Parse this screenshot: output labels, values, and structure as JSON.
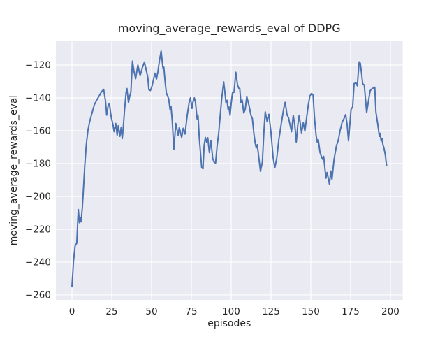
{
  "chart_data": {
    "type": "line",
    "title": "moving_average_rewards_eval of DDPG",
    "xlabel": "episodes",
    "ylabel": "moving_average_rewards_eval",
    "x_ticks": [
      0,
      25,
      50,
      75,
      100,
      125,
      150,
      175,
      200
    ],
    "x_tick_labels": [
      "0",
      "25",
      "50",
      "75",
      "100",
      "125",
      "150",
      "175",
      "200"
    ],
    "y_ticks": [
      -120,
      -140,
      -160,
      -180,
      -200,
      -220,
      -240,
      -260
    ],
    "y_tick_labels": [
      "−120",
      "−140",
      "−160",
      "−180",
      "−200",
      "−220",
      "−240",
      "−260"
    ],
    "xlim": [
      -10.1,
      207.7
    ],
    "ylim": [
      -263.0,
      -105.1
    ],
    "grid": true,
    "legend": false,
    "colors": {
      "figure_background": "#ffffff",
      "axes_background": "#eaeaf2",
      "grid": "#ffffff",
      "line": "#4c72b0",
      "text": "#262626"
    },
    "series": [
      {
        "name": "moving_average_rewards_eval",
        "color": "#4c72b0",
        "points": [
          [
            0,
            -255
          ],
          [
            1,
            -239
          ],
          [
            2,
            -230
          ],
          [
            3,
            -228.5
          ],
          [
            4,
            -208
          ],
          [
            4.7,
            -216
          ],
          [
            5.2,
            -213
          ],
          [
            5.7,
            -215.5
          ],
          [
            6.5,
            -207
          ],
          [
            7,
            -199
          ],
          [
            8,
            -182
          ],
          [
            9,
            -168.5
          ],
          [
            10,
            -160
          ],
          [
            11,
            -155
          ],
          [
            11.4,
            -153.5
          ],
          [
            12.6,
            -149.2
          ],
          [
            14,
            -144.3
          ],
          [
            15.5,
            -141.4
          ],
          [
            17,
            -139
          ],
          [
            18.4,
            -136.5
          ],
          [
            19.9,
            -134.8
          ],
          [
            21.1,
            -142.1
          ],
          [
            21.8,
            -150.5
          ],
          [
            22.8,
            -144.3
          ],
          [
            23.5,
            -143.5
          ],
          [
            24.7,
            -152
          ],
          [
            25.7,
            -156
          ],
          [
            26.5,
            -160.6
          ],
          [
            27.5,
            -155.6
          ],
          [
            28.4,
            -162.7
          ],
          [
            29.1,
            -157
          ],
          [
            30.1,
            -163.4
          ],
          [
            30.9,
            -158
          ],
          [
            31.6,
            -164.8
          ],
          [
            32.3,
            -157
          ],
          [
            33,
            -147.8
          ],
          [
            34,
            -136.5
          ],
          [
            34.5,
            -134.3
          ],
          [
            35.5,
            -142.8
          ],
          [
            36.3,
            -139
          ],
          [
            37,
            -136.5
          ],
          [
            38,
            -117.6
          ],
          [
            39,
            -124
          ],
          [
            40,
            -128.3
          ],
          [
            41.4,
            -120
          ],
          [
            42.8,
            -126.5
          ],
          [
            44.3,
            -121.4
          ],
          [
            45.5,
            -118.2
          ],
          [
            46.5,
            -122.5
          ],
          [
            47.7,
            -127.8
          ],
          [
            48.3,
            -135
          ],
          [
            49.3,
            -135.5
          ],
          [
            50.3,
            -132.8
          ],
          [
            51.2,
            -129
          ],
          [
            52.1,
            -125
          ],
          [
            53.1,
            -128.5
          ],
          [
            54,
            -124
          ],
          [
            55,
            -117
          ],
          [
            56,
            -111.5
          ],
          [
            57.2,
            -122.3
          ],
          [
            57.7,
            -121.3
          ],
          [
            58.6,
            -131
          ],
          [
            59.3,
            -137
          ],
          [
            60.8,
            -140.7
          ],
          [
            61.6,
            -147.1
          ],
          [
            62.2,
            -145
          ],
          [
            63,
            -154.2
          ],
          [
            64,
            -171.2
          ],
          [
            65.2,
            -155.6
          ],
          [
            66.7,
            -162.7
          ],
          [
            67.4,
            -158
          ],
          [
            68.9,
            -164.1
          ],
          [
            69.9,
            -158.5
          ],
          [
            71,
            -162
          ],
          [
            72.5,
            -149.9
          ],
          [
            73.7,
            -142.2
          ],
          [
            74.4,
            -140
          ],
          [
            75.4,
            -146.4
          ],
          [
            76.1,
            -142
          ],
          [
            76.9,
            -140
          ],
          [
            77.6,
            -142.8
          ],
          [
            78.6,
            -152.8
          ],
          [
            79.2,
            -151
          ],
          [
            80,
            -164.8
          ],
          [
            81.5,
            -182.5
          ],
          [
            82.3,
            -183.2
          ],
          [
            83,
            -169.1
          ],
          [
            83.8,
            -164.1
          ],
          [
            84.5,
            -166.9
          ],
          [
            85.3,
            -164.3
          ],
          [
            86.3,
            -173.3
          ],
          [
            87.3,
            -166.2
          ],
          [
            88.4,
            -176.9
          ],
          [
            89.2,
            -179
          ],
          [
            90.2,
            -179.7
          ],
          [
            91.2,
            -169.1
          ],
          [
            92.1,
            -162
          ],
          [
            93,
            -152
          ],
          [
            94,
            -141
          ],
          [
            95.3,
            -130.3
          ],
          [
            96.2,
            -137.8
          ],
          [
            96.7,
            -142.7
          ],
          [
            97.4,
            -141.5
          ],
          [
            98.1,
            -147.1
          ],
          [
            98.6,
            -145.5
          ],
          [
            99.3,
            -150.6
          ],
          [
            100,
            -143.5
          ],
          [
            100.8,
            -137
          ],
          [
            101.8,
            -136.6
          ],
          [
            102.9,
            -124.4
          ],
          [
            104,
            -132.2
          ],
          [
            105,
            -134.5
          ],
          [
            105.4,
            -134.3
          ],
          [
            106.1,
            -142.8
          ],
          [
            106.9,
            -141.4
          ],
          [
            107.9,
            -149.2
          ],
          [
            108.8,
            -147.1
          ],
          [
            109.8,
            -139.3
          ],
          [
            111.2,
            -144.5
          ],
          [
            112.4,
            -150.5
          ],
          [
            113.3,
            -152.5
          ],
          [
            114.3,
            -162
          ],
          [
            115,
            -167
          ],
          [
            115.7,
            -170.5
          ],
          [
            116.4,
            -168.5
          ],
          [
            117.2,
            -175
          ],
          [
            118.4,
            -184.7
          ],
          [
            119.6,
            -179
          ],
          [
            120.6,
            -160
          ],
          [
            121.4,
            -148.5
          ],
          [
            122.5,
            -154.2
          ],
          [
            123.7,
            -150
          ],
          [
            125,
            -161
          ],
          [
            126.3,
            -176
          ],
          [
            127.4,
            -182.6
          ],
          [
            128.6,
            -177
          ],
          [
            130,
            -165
          ],
          [
            131.5,
            -155.5
          ],
          [
            133,
            -146.5
          ],
          [
            133.9,
            -142.7
          ],
          [
            135.1,
            -150.4
          ],
          [
            136,
            -152
          ],
          [
            136.8,
            -155.6
          ],
          [
            137.9,
            -160.6
          ],
          [
            139,
            -150.6
          ],
          [
            140,
            -157
          ],
          [
            140.9,
            -166.9
          ],
          [
            141.8,
            -157
          ],
          [
            142.7,
            -150.6
          ],
          [
            144.2,
            -161.3
          ],
          [
            145.3,
            -155.2
          ],
          [
            146.3,
            -160.2
          ],
          [
            147.4,
            -152
          ],
          [
            148.4,
            -144.5
          ],
          [
            149.4,
            -139
          ],
          [
            150.3,
            -137.4
          ],
          [
            151.4,
            -137.9
          ],
          [
            152.4,
            -153
          ],
          [
            153.4,
            -163.4
          ],
          [
            154.1,
            -166.9
          ],
          [
            154.7,
            -165.5
          ],
          [
            155.8,
            -173.3
          ],
          [
            157,
            -176.5
          ],
          [
            157.5,
            -177.4
          ],
          [
            158.1,
            -175.6
          ],
          [
            159.5,
            -188.9
          ],
          [
            160.2,
            -185.4
          ],
          [
            160.7,
            -187.6
          ],
          [
            161.7,
            -192.4
          ],
          [
            162.6,
            -184.5
          ],
          [
            163.3,
            -189.6
          ],
          [
            164.6,
            -177.6
          ],
          [
            166.1,
            -169.3
          ],
          [
            167.3,
            -165.8
          ],
          [
            168.3,
            -160.4
          ],
          [
            169.7,
            -154.8
          ],
          [
            171,
            -152.3
          ],
          [
            171.9,
            -150.2
          ],
          [
            172.8,
            -156
          ],
          [
            173.7,
            -166.1
          ],
          [
            175.3,
            -147
          ],
          [
            176.3,
            -145.5
          ],
          [
            177.2,
            -131.4
          ],
          [
            178.3,
            -130.8
          ],
          [
            179.2,
            -132.6
          ],
          [
            180.4,
            -118.1
          ],
          [
            181.1,
            -118.9
          ],
          [
            181.9,
            -125.2
          ],
          [
            182.6,
            -131.4
          ],
          [
            183.6,
            -132.2
          ],
          [
            185.1,
            -149
          ],
          [
            186.3,
            -141.5
          ],
          [
            187.3,
            -135.6
          ],
          [
            188.6,
            -134.3
          ],
          [
            190.2,
            -133.5
          ],
          [
            190.9,
            -148.5
          ],
          [
            192.1,
            -156.3
          ],
          [
            193.1,
            -163.4
          ],
          [
            193.5,
            -161.6
          ],
          [
            194.2,
            -166.2
          ],
          [
            194.7,
            -164.6
          ],
          [
            195.3,
            -168.4
          ],
          [
            196.1,
            -171.2
          ],
          [
            196.8,
            -174.8
          ],
          [
            197.6,
            -181.3
          ]
        ]
      }
    ]
  }
}
